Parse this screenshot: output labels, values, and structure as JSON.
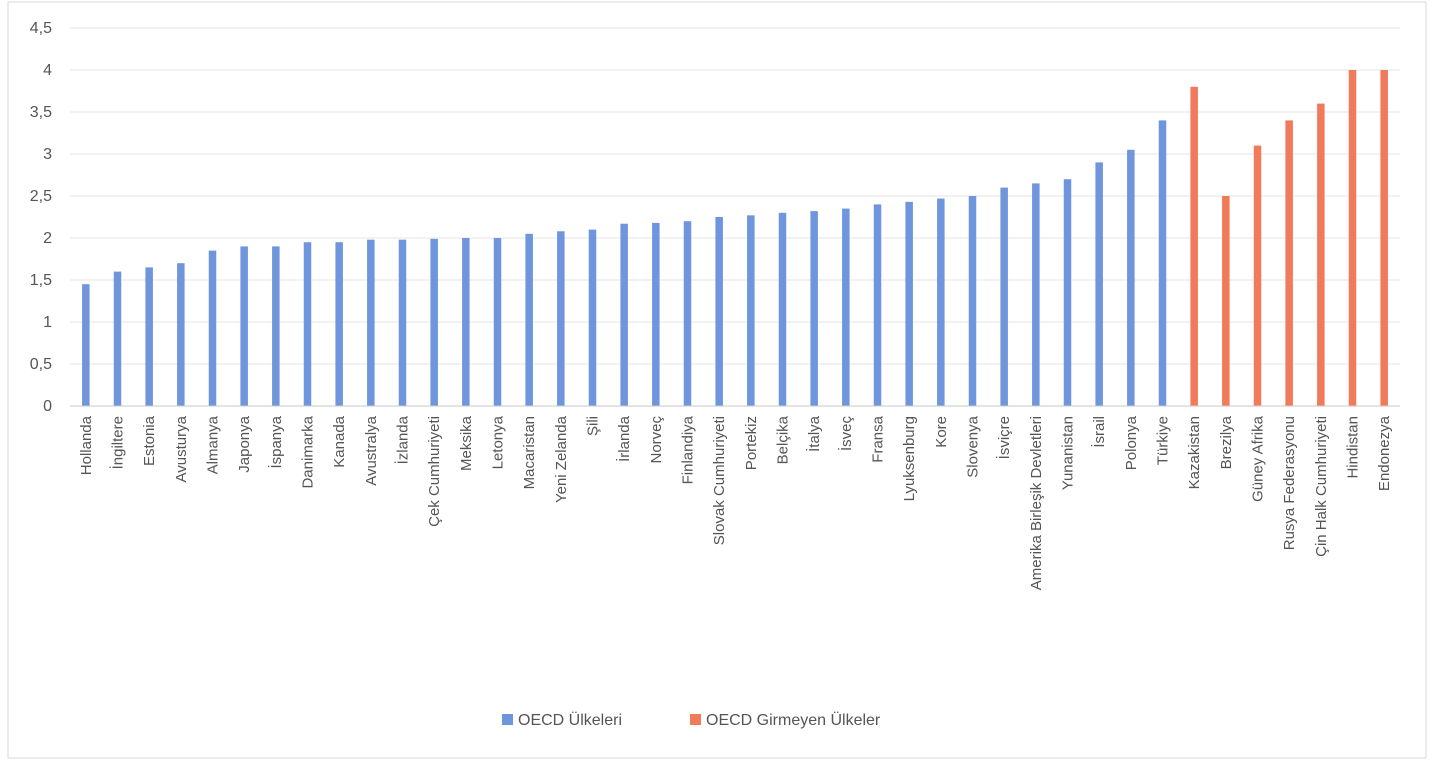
{
  "chart_data": {
    "type": "bar",
    "title": "",
    "xlabel": "",
    "ylabel": "",
    "ylim": [
      0,
      4.5
    ],
    "yticks": [
      "0",
      "0,5",
      "1",
      "1,5",
      "2",
      "2,5",
      "3",
      "3,5",
      "4",
      "4,5"
    ],
    "grid": true,
    "legend_position": "bottom",
    "colors": {
      "oecd": "#6f95dc",
      "non_oecd": "#f07a5a",
      "grid": "#e6e6e6",
      "axis": "#c8c8c8",
      "frame": "#d9d9d9"
    },
    "categories": [
      "Hollanda",
      "İngiltere",
      "Estonia",
      "Avusturya",
      "Almanya",
      "Japonya",
      "İspanya",
      "Danimarka",
      "Kanada",
      "Avustralya",
      "İzlanda",
      "Çek Cumhuriyeti",
      "Meksika",
      "Letonya",
      "Macaristan",
      "Yeni Zelanda",
      "Şili",
      "İrlanda",
      "Norveç",
      "Finlandiya",
      "Slovak Cumhuriyeti",
      "Portekiz",
      "Belçika",
      "İtalya",
      "İsveç",
      "Fransa",
      "Lyuksenburg",
      "Kore",
      "Slovenya",
      "İsviçre",
      "Amerika Birleşik Devletleri",
      "Yunanistan",
      "İsrail",
      "Polonya",
      "Türkiye",
      "Kazakistan",
      "Brezilya",
      "Güney Afrika",
      "Rusya Federasyonu",
      "Çin Halk Cumhuriyeti",
      "Hindistan",
      "Endonezya"
    ],
    "series": [
      {
        "name": "OECD Ülkeleri",
        "color": "#6f95dc",
        "values": [
          1.45,
          1.6,
          1.65,
          1.7,
          1.85,
          1.9,
          1.9,
          1.95,
          1.95,
          1.98,
          1.98,
          1.99,
          2.0,
          2.0,
          2.05,
          2.08,
          2.1,
          2.17,
          2.18,
          2.2,
          2.25,
          2.27,
          2.3,
          2.32,
          2.35,
          2.4,
          2.43,
          2.47,
          2.5,
          2.6,
          2.65,
          2.7,
          2.9,
          3.05,
          3.4,
          null,
          null,
          null,
          null,
          null,
          null,
          null
        ]
      },
      {
        "name": "OECD Girmeyen Ülkeler",
        "color": "#f07a5a",
        "values": [
          null,
          null,
          null,
          null,
          null,
          null,
          null,
          null,
          null,
          null,
          null,
          null,
          null,
          null,
          null,
          null,
          null,
          null,
          null,
          null,
          null,
          null,
          null,
          null,
          null,
          null,
          null,
          null,
          null,
          null,
          null,
          null,
          null,
          null,
          null,
          3.8,
          2.5,
          3.1,
          3.4,
          3.6,
          4.0,
          4.0
        ]
      }
    ]
  }
}
